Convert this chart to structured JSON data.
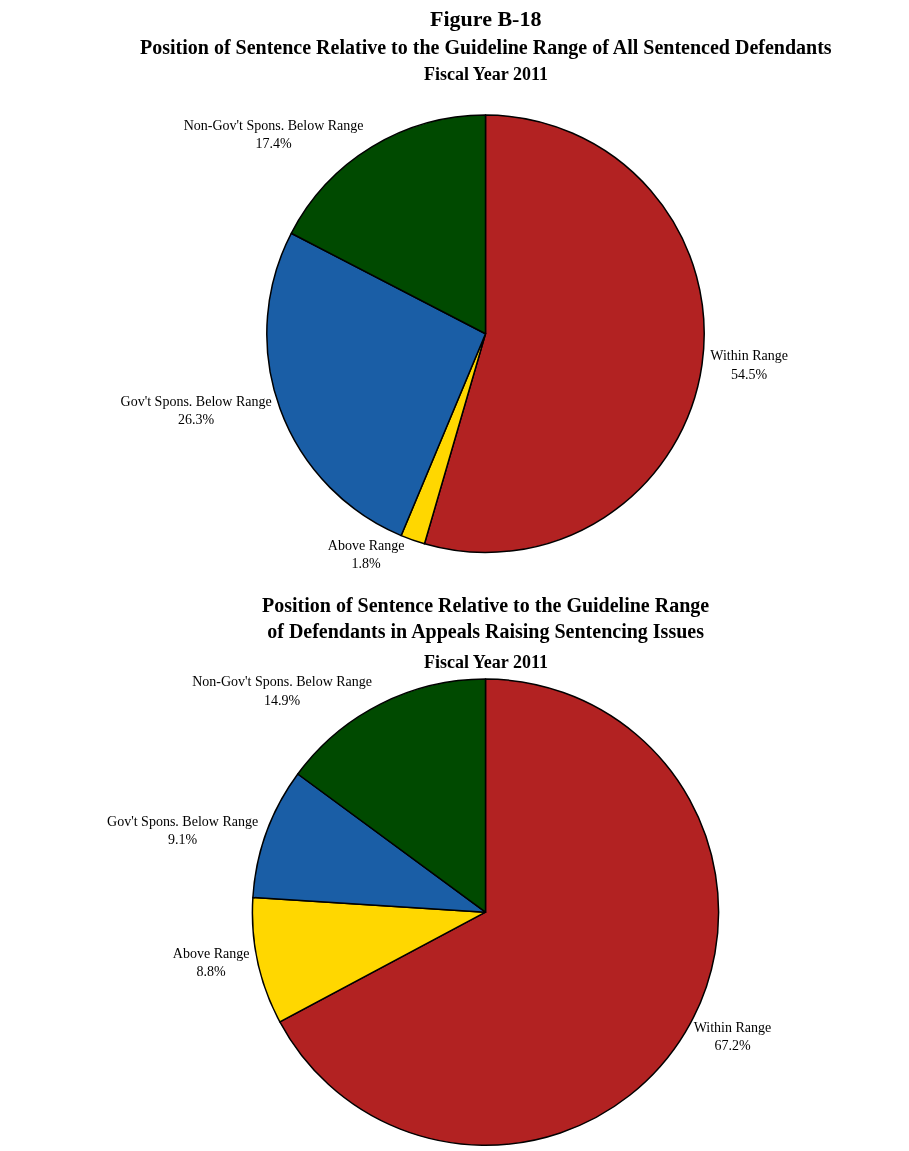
{
  "chart_data": [
    {
      "type": "pie",
      "title": "Position of Sentence Relative to the Guideline Range of All Sentenced Defendants",
      "subtitle": "Fiscal Year 2011",
      "annotations": [
        "Figure B-18"
      ],
      "legend": false,
      "categories": [
        "Within Range",
        "Above Range",
        "Gov't Spons. Below Range",
        "Non-Gov't Spons. Below Range"
      ],
      "values": [
        54.5,
        1.8,
        26.3,
        17.4
      ],
      "value_labels": [
        "54.5%",
        "1.8%",
        "26.3%",
        "17.4%"
      ],
      "colors": [
        "#b22222",
        "#ffd700",
        "#1a5ea6",
        "#004a00"
      ]
    },
    {
      "type": "pie",
      "title": "Position of Sentence Relative to the Guideline Range\nof Defendants in Appeals Raising Sentencing Issues",
      "subtitle": "Fiscal Year 2011",
      "legend": false,
      "categories": [
        "Within Range",
        "Above Range",
        "Gov't Spons. Below Range",
        "Non-Gov't Spons. Below Range"
      ],
      "values": [
        67.2,
        8.8,
        9.1,
        14.9
      ],
      "value_labels": [
        "67.2%",
        "8.8%",
        "9.1%",
        "14.9%"
      ],
      "colors": [
        "#b22222",
        "#ffd700",
        "#1a5ea6",
        "#004a00"
      ]
    }
  ]
}
